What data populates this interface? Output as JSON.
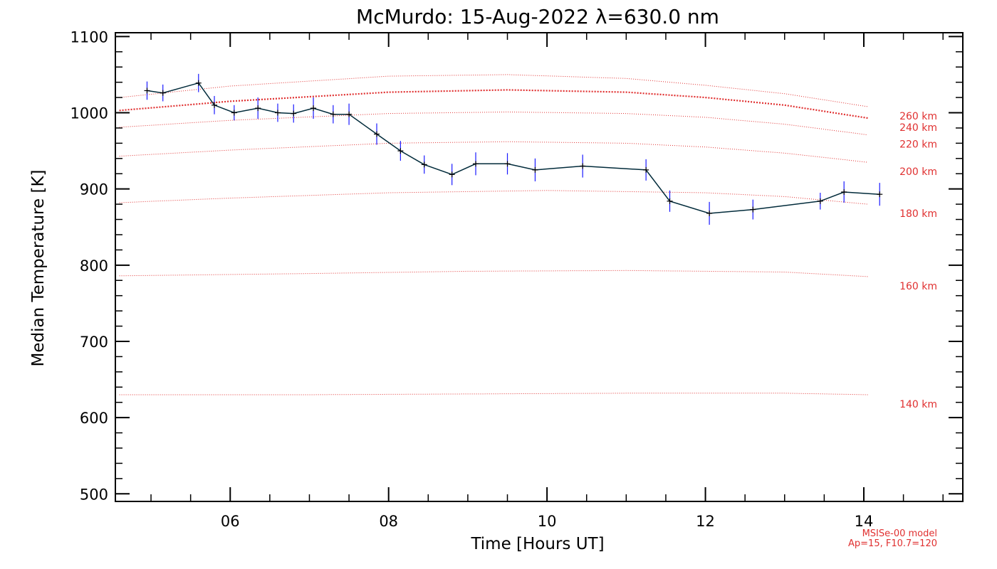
{
  "chart_data": {
    "type": "line",
    "title": "McMurdo: 15-Aug-2022 λ=630.0 nm",
    "xlabel": "Time [Hours UT]",
    "ylabel": "Median Temperature [K]",
    "xlim": [
      4.55,
      15.25
    ],
    "ylim": [
      490,
      1105
    ],
    "x_ticks": [
      6,
      8,
      10,
      12,
      14
    ],
    "x_tick_labels": [
      "06",
      "08",
      "10",
      "12",
      "14"
    ],
    "y_ticks": [
      500,
      600,
      700,
      800,
      900,
      1000,
      1100
    ],
    "y_tick_labels": [
      "500",
      "600",
      "700",
      "800",
      "900",
      "1000",
      "1100"
    ],
    "grid": false,
    "series": [
      {
        "color": "#002a3a",
        "error_color": "#1a1aff",
        "points": [
          {
            "x": 4.95,
            "y": 1029,
            "err": 12
          },
          {
            "x": 5.15,
            "y": 1026,
            "err": 11
          },
          {
            "x": 5.6,
            "y": 1039,
            "err": 12
          },
          {
            "x": 5.8,
            "y": 1010,
            "err": 12
          },
          {
            "x": 6.05,
            "y": 1000,
            "err": 10
          },
          {
            "x": 6.35,
            "y": 1006,
            "err": 14
          },
          {
            "x": 6.6,
            "y": 1000,
            "err": 12
          },
          {
            "x": 6.8,
            "y": 999,
            "err": 12
          },
          {
            "x": 7.05,
            "y": 1006,
            "err": 14
          },
          {
            "x": 7.3,
            "y": 998,
            "err": 12
          },
          {
            "x": 7.5,
            "y": 998,
            "err": 14
          },
          {
            "x": 7.85,
            "y": 972,
            "err": 14
          },
          {
            "x": 8.15,
            "y": 950,
            "err": 13
          },
          {
            "x": 8.45,
            "y": 932,
            "err": 12
          },
          {
            "x": 8.8,
            "y": 919,
            "err": 14
          },
          {
            "x": 9.1,
            "y": 933,
            "err": 15
          },
          {
            "x": 9.5,
            "y": 933,
            "err": 14
          },
          {
            "x": 9.85,
            "y": 925,
            "err": 15
          },
          {
            "x": 10.45,
            "y": 930,
            "err": 15
          },
          {
            "x": 11.25,
            "y": 925,
            "err": 14
          },
          {
            "x": 11.55,
            "y": 884,
            "err": 14
          },
          {
            "x": 12.05,
            "y": 868,
            "err": 15
          },
          {
            "x": 12.6,
            "y": 873,
            "err": 13
          },
          {
            "x": 13.45,
            "y": 884,
            "err": 11
          },
          {
            "x": 13.75,
            "y": 896,
            "err": 14
          },
          {
            "x": 14.2,
            "y": 893,
            "err": 15
          }
        ]
      }
    ],
    "model_curves": [
      {
        "label": "140 km",
        "x": [
          4.6,
          7,
          9,
          11,
          13,
          14.05
        ],
        "y": [
          630,
          630,
          631,
          632,
          632,
          630
        ],
        "bold": false
      },
      {
        "label": "160 km",
        "x": [
          4.6,
          7,
          9,
          11,
          13,
          14.05
        ],
        "y": [
          786,
          789,
          792,
          793,
          791,
          785
        ],
        "bold": false
      },
      {
        "label": "180 km",
        "x": [
          4.6,
          6,
          8,
          10,
          12,
          13,
          14.05
        ],
        "y": [
          882,
          888,
          895,
          898,
          895,
          890,
          880
        ],
        "bold": false
      },
      {
        "label": "200 km",
        "x": [
          4.6,
          6,
          8,
          9.5,
          11,
          12,
          13,
          14.05
        ],
        "y": [
          943,
          951,
          960,
          962,
          960,
          955,
          947,
          935
        ],
        "bold": false
      },
      {
        "label": "220 km",
        "x": [
          4.6,
          6,
          8,
          9.5,
          11,
          12,
          13,
          14.05
        ],
        "y": [
          981,
          990,
          999,
          1001,
          999,
          994,
          985,
          971
        ],
        "bold": false
      },
      {
        "label": "240 km",
        "x": [
          4.6,
          6,
          8,
          9.5,
          11,
          12,
          13,
          14.05
        ],
        "y": [
          1003,
          1015,
          1027,
          1030,
          1027,
          1020,
          1010,
          993
        ],
        "bold": true
      },
      {
        "label": "260 km",
        "x": [
          4.6,
          6,
          8,
          9.5,
          11,
          12,
          13,
          14.05
        ],
        "y": [
          1020,
          1035,
          1048,
          1050,
          1045,
          1036,
          1025,
          1008
        ],
        "bold": false
      }
    ],
    "model_color": "#e03030",
    "model_note": [
      "MSISe-00 model",
      "Ap=15, F10.7=120"
    ]
  }
}
